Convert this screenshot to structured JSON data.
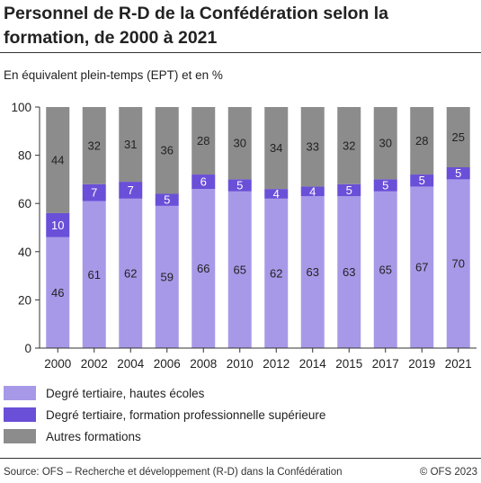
{
  "title": "Personnel de R-D de la Confédération selon la formation, de 2000 à 2021",
  "subtitle": "En équivalent plein-temps (EPT) et en %",
  "source": "Source: OFS – Recherche et développement (R-D) dans la Confédération",
  "copyright": "© OFS 2023",
  "chart_data": {
    "type": "bar",
    "stacked": true,
    "categories": [
      "2000",
      "2002",
      "2004",
      "2006",
      "2008",
      "2010",
      "2012",
      "2014",
      "2015",
      "2017",
      "2019",
      "2021"
    ],
    "series": [
      {
        "name": "Degré tertiaire, hautes écoles",
        "color": "#a899e8",
        "values": [
          46,
          61,
          62,
          59,
          66,
          65,
          62,
          63,
          63,
          65,
          67,
          70
        ]
      },
      {
        "name": "Degré tertiaire, formation professionnelle supérieure",
        "color": "#6a4fd8",
        "values": [
          10,
          7,
          7,
          5,
          6,
          5,
          4,
          4,
          5,
          5,
          5,
          5
        ]
      },
      {
        "name": "Autres formations",
        "color": "#8c8c8c",
        "values": [
          44,
          32,
          31,
          36,
          28,
          30,
          34,
          33,
          32,
          30,
          28,
          25
        ]
      }
    ],
    "ylim": [
      0,
      100
    ],
    "yticks": [
      0,
      20,
      40,
      60,
      80,
      100
    ],
    "grid": false,
    "legend_position": "bottom-left"
  }
}
